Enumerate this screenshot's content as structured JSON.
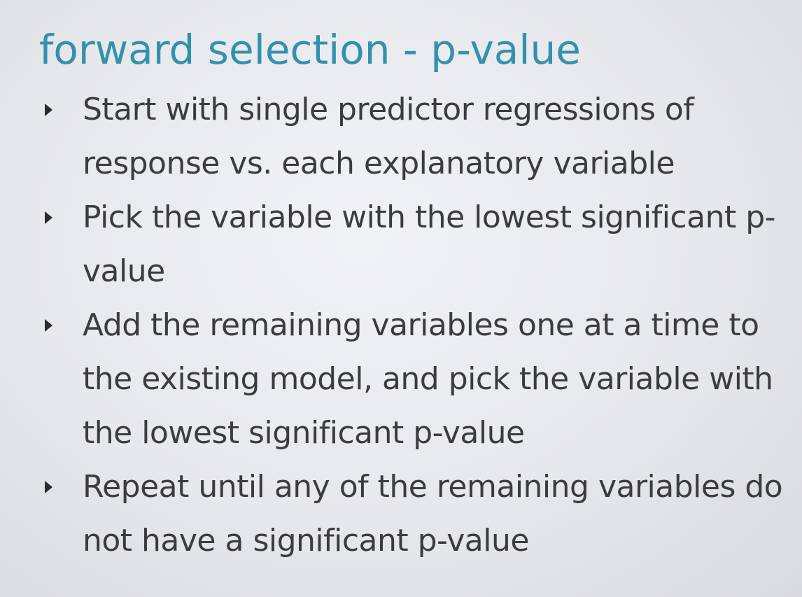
{
  "slide": {
    "title": "forward selection - p-value",
    "bullets": [
      {
        "text": "Start with single predictor regressions of response vs. each explanatory variable"
      },
      {
        "text": "Pick the variable with the lowest significant p-value"
      },
      {
        "text": "Add the remaining variables one at a time to the existing model, and pick the variable with the lowest significant p-value"
      },
      {
        "text": "Repeat until any of the remaining variables do not have a significant p-value"
      }
    ],
    "icons": {
      "bullet": "triangle-bullet-icon"
    },
    "colors": {
      "title": "#3391ac",
      "text": "#3c3c3c",
      "bullet": "#2b2b2b"
    }
  }
}
